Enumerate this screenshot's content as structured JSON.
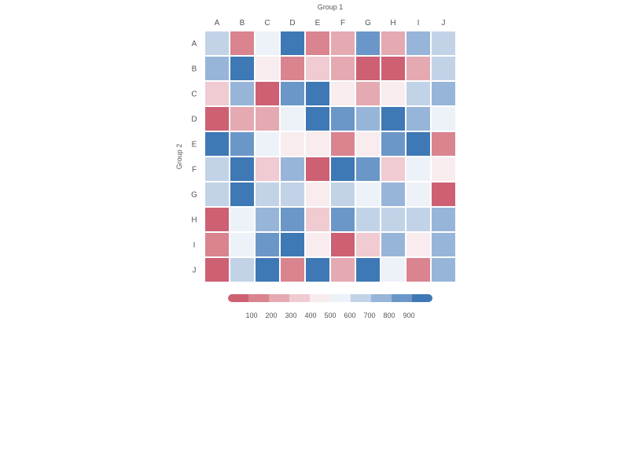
{
  "chart_data": {
    "type": "heatmap",
    "title": "",
    "xlabel": "Group 1",
    "ylabel": "Group 2",
    "x_categories": [
      "A",
      "B",
      "C",
      "D",
      "E",
      "F",
      "G",
      "H",
      "I",
      "J"
    ],
    "y_categories": [
      "A",
      "B",
      "C",
      "D",
      "E",
      "F",
      "G",
      "H",
      "I",
      "J"
    ],
    "values": [
      [
        650,
        150,
        550,
        1000,
        150,
        250,
        850,
        250,
        750,
        650
      ],
      [
        750,
        1000,
        450,
        150,
        350,
        250,
        50,
        50,
        250,
        650
      ],
      [
        350,
        750,
        50,
        850,
        1000,
        450,
        250,
        450,
        650,
        750
      ],
      [
        50,
        250,
        250,
        550,
        1000,
        850,
        750,
        1000,
        750,
        550
      ],
      [
        1000,
        850,
        550,
        450,
        450,
        150,
        450,
        850,
        1000,
        150
      ],
      [
        650,
        1000,
        350,
        750,
        50,
        1000,
        850,
        350,
        550,
        450
      ],
      [
        650,
        1000,
        650,
        650,
        450,
        650,
        550,
        750,
        550,
        50
      ],
      [
        50,
        550,
        750,
        850,
        350,
        850,
        650,
        650,
        650,
        750
      ],
      [
        150,
        550,
        850,
        1000,
        450,
        50,
        350,
        750,
        450,
        750
      ],
      [
        50,
        650,
        1000,
        150,
        1000,
        250,
        1000,
        550,
        150,
        750
      ]
    ],
    "value_range": [
      0,
      1000
    ],
    "colorbar": {
      "orientation": "horizontal",
      "placement": "bottom",
      "ticks": [
        "100",
        "200",
        "300",
        "400",
        "500",
        "600",
        "700",
        "800",
        "900"
      ],
      "colors": [
        "#cd6073",
        "#d9848f",
        "#e5a9b2",
        "#f0cbd2",
        "#f8ecef",
        "#edf1f8",
        "#c2d3e7",
        "#97b5d8",
        "#6b97c8",
        "#3e78b5"
      ]
    },
    "grid": false
  }
}
